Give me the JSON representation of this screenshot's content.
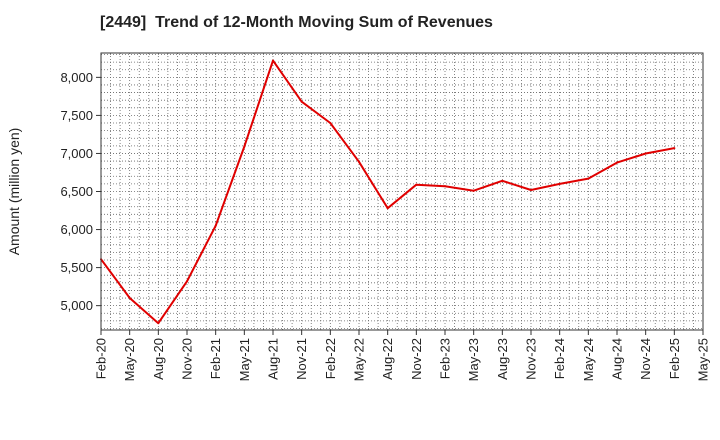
{
  "chart_data": {
    "type": "line",
    "title": "[2449]  Trend of 12-Month Moving Sum of Revenues",
    "ylabel": "Amount (million yen)",
    "xlabel": "",
    "grid": true,
    "ylim": [
      4680,
      8320
    ],
    "yticks": [
      5000,
      5500,
      6000,
      6500,
      7000,
      7500,
      8000
    ],
    "ytick_labels": [
      "5,000",
      "5,500",
      "6,000",
      "6,500",
      "7,000",
      "7,500",
      "8,000"
    ],
    "x_categories": [
      "Feb-20",
      "May-20",
      "Aug-20",
      "Nov-20",
      "Feb-21",
      "May-21",
      "Aug-21",
      "Nov-21",
      "Feb-22",
      "May-22",
      "Aug-22",
      "Nov-22",
      "Feb-23",
      "May-23",
      "Aug-23",
      "Nov-23",
      "Feb-24",
      "May-24",
      "Aug-24",
      "Nov-24",
      "Feb-25",
      "May-25"
    ],
    "series": [
      {
        "color": "#e00000",
        "values": [
          5610,
          5100,
          4770,
          5320,
          6050,
          7090,
          8220,
          7680,
          7400,
          6890,
          6280,
          6590,
          6570,
          6510,
          6640,
          6520,
          6600,
          6670,
          6880,
          7000,
          7070,
          null
        ]
      }
    ]
  }
}
